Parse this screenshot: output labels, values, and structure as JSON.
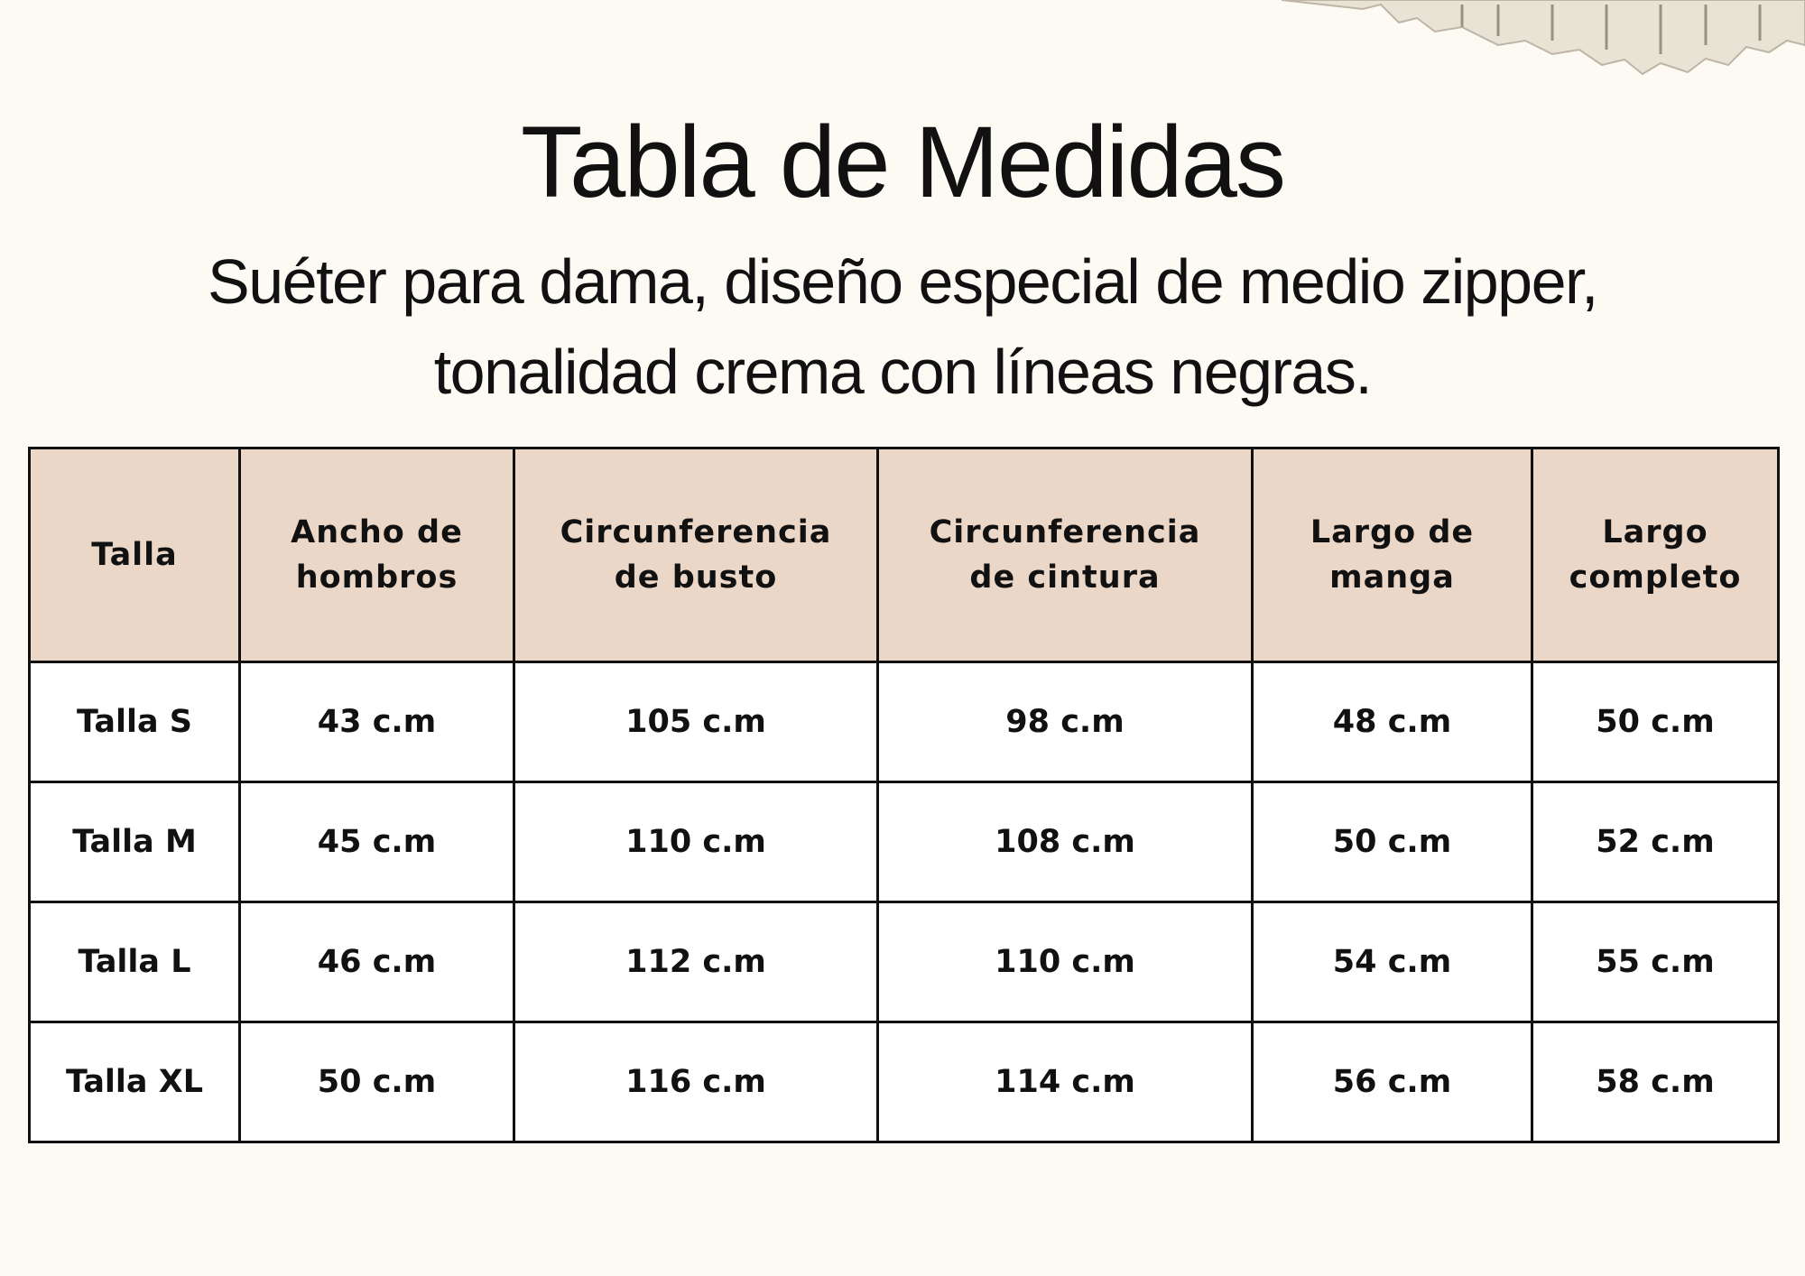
{
  "header": {
    "title": "Tabla de Medidas",
    "subtitle": [
      "Suéter para dama, diseño especial de medio zipper,",
      "tonalidad crema con líneas negras."
    ]
  },
  "table": {
    "headers": [
      "Talla",
      "Ancho de\nhombros",
      "Circunferencia\nde busto",
      "Circunferencia\nde cintura",
      "Largo de\nmanga",
      "Largo\ncompleto"
    ],
    "rows": [
      [
        "Talla S",
        "43 c.m",
        "105 c.m",
        "98 c.m",
        "48 c.m",
        "50 c.m"
      ],
      [
        "Talla M",
        "45 c.m",
        "110 c.m",
        "108 c.m",
        "50 c.m",
        "52 c.m"
      ],
      [
        "Talla L",
        "46 c.m",
        "112 c.m",
        "110 c.m",
        "54 c.m",
        "55 c.m"
      ],
      [
        "Talla XL",
        "50 c.m",
        "116 c.m",
        "114 c.m",
        "56 c.m",
        "58 c.m"
      ]
    ]
  }
}
